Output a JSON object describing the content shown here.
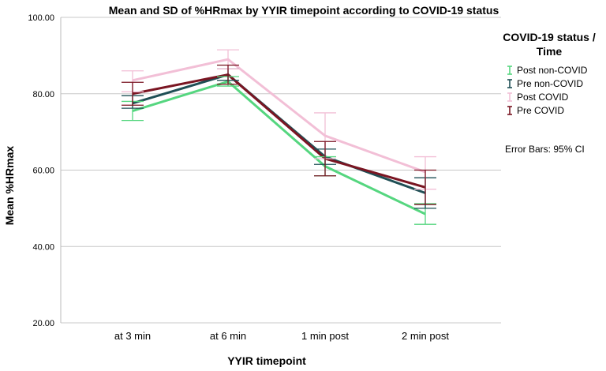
{
  "chart_data": {
    "type": "line",
    "title": "Mean and SD of %HRmax by YYIR timepoint according to COVID-19 status",
    "xlabel": "YYIR timepoint",
    "ylabel": "Mean %HRmax",
    "categories": [
      "at 3 min",
      "at 6 min",
      "1 min post",
      "2 min post"
    ],
    "ylim": [
      20,
      100
    ],
    "yticks": [
      "20.00",
      "40.00",
      "60.00",
      "80.00",
      "100.00"
    ],
    "ytick_values": [
      20,
      40,
      60,
      80,
      100
    ],
    "grid": "horizontal",
    "legend_title": "COVID-19 status / Time",
    "legend_position": "right",
    "error_bar_note": "Error Bars: 95% CI",
    "series": [
      {
        "name": "Post non-COVID",
        "color": "#55d67f",
        "values": [
          75.5,
          83.2,
          61.0,
          48.5
        ],
        "lower": [
          73.0,
          82.0,
          58.5,
          45.8
        ],
        "upper": [
          78.0,
          84.5,
          63.5,
          51.2
        ]
      },
      {
        "name": "Pre non-COVID",
        "color": "#1f4f55",
        "values": [
          77.5,
          85.0,
          63.5,
          54.0
        ],
        "lower": [
          76.2,
          83.5,
          61.5,
          50.0
        ],
        "upper": [
          79.5,
          86.5,
          65.5,
          58.0
        ]
      },
      {
        "name": "Post COVID",
        "color": "#f2bfd6",
        "values": [
          83.5,
          89.0,
          69.0,
          59.5
        ],
        "lower": [
          80.5,
          86.5,
          63.0,
          55.0
        ],
        "upper": [
          86.0,
          91.5,
          75.0,
          63.5
        ]
      },
      {
        "name": "Pre COVID",
        "color": "#7a1522",
        "values": [
          80.0,
          85.0,
          63.0,
          55.5
        ],
        "lower": [
          77.0,
          82.5,
          58.5,
          51.0
        ],
        "upper": [
          83.0,
          87.5,
          67.5,
          60.0
        ]
      }
    ]
  }
}
